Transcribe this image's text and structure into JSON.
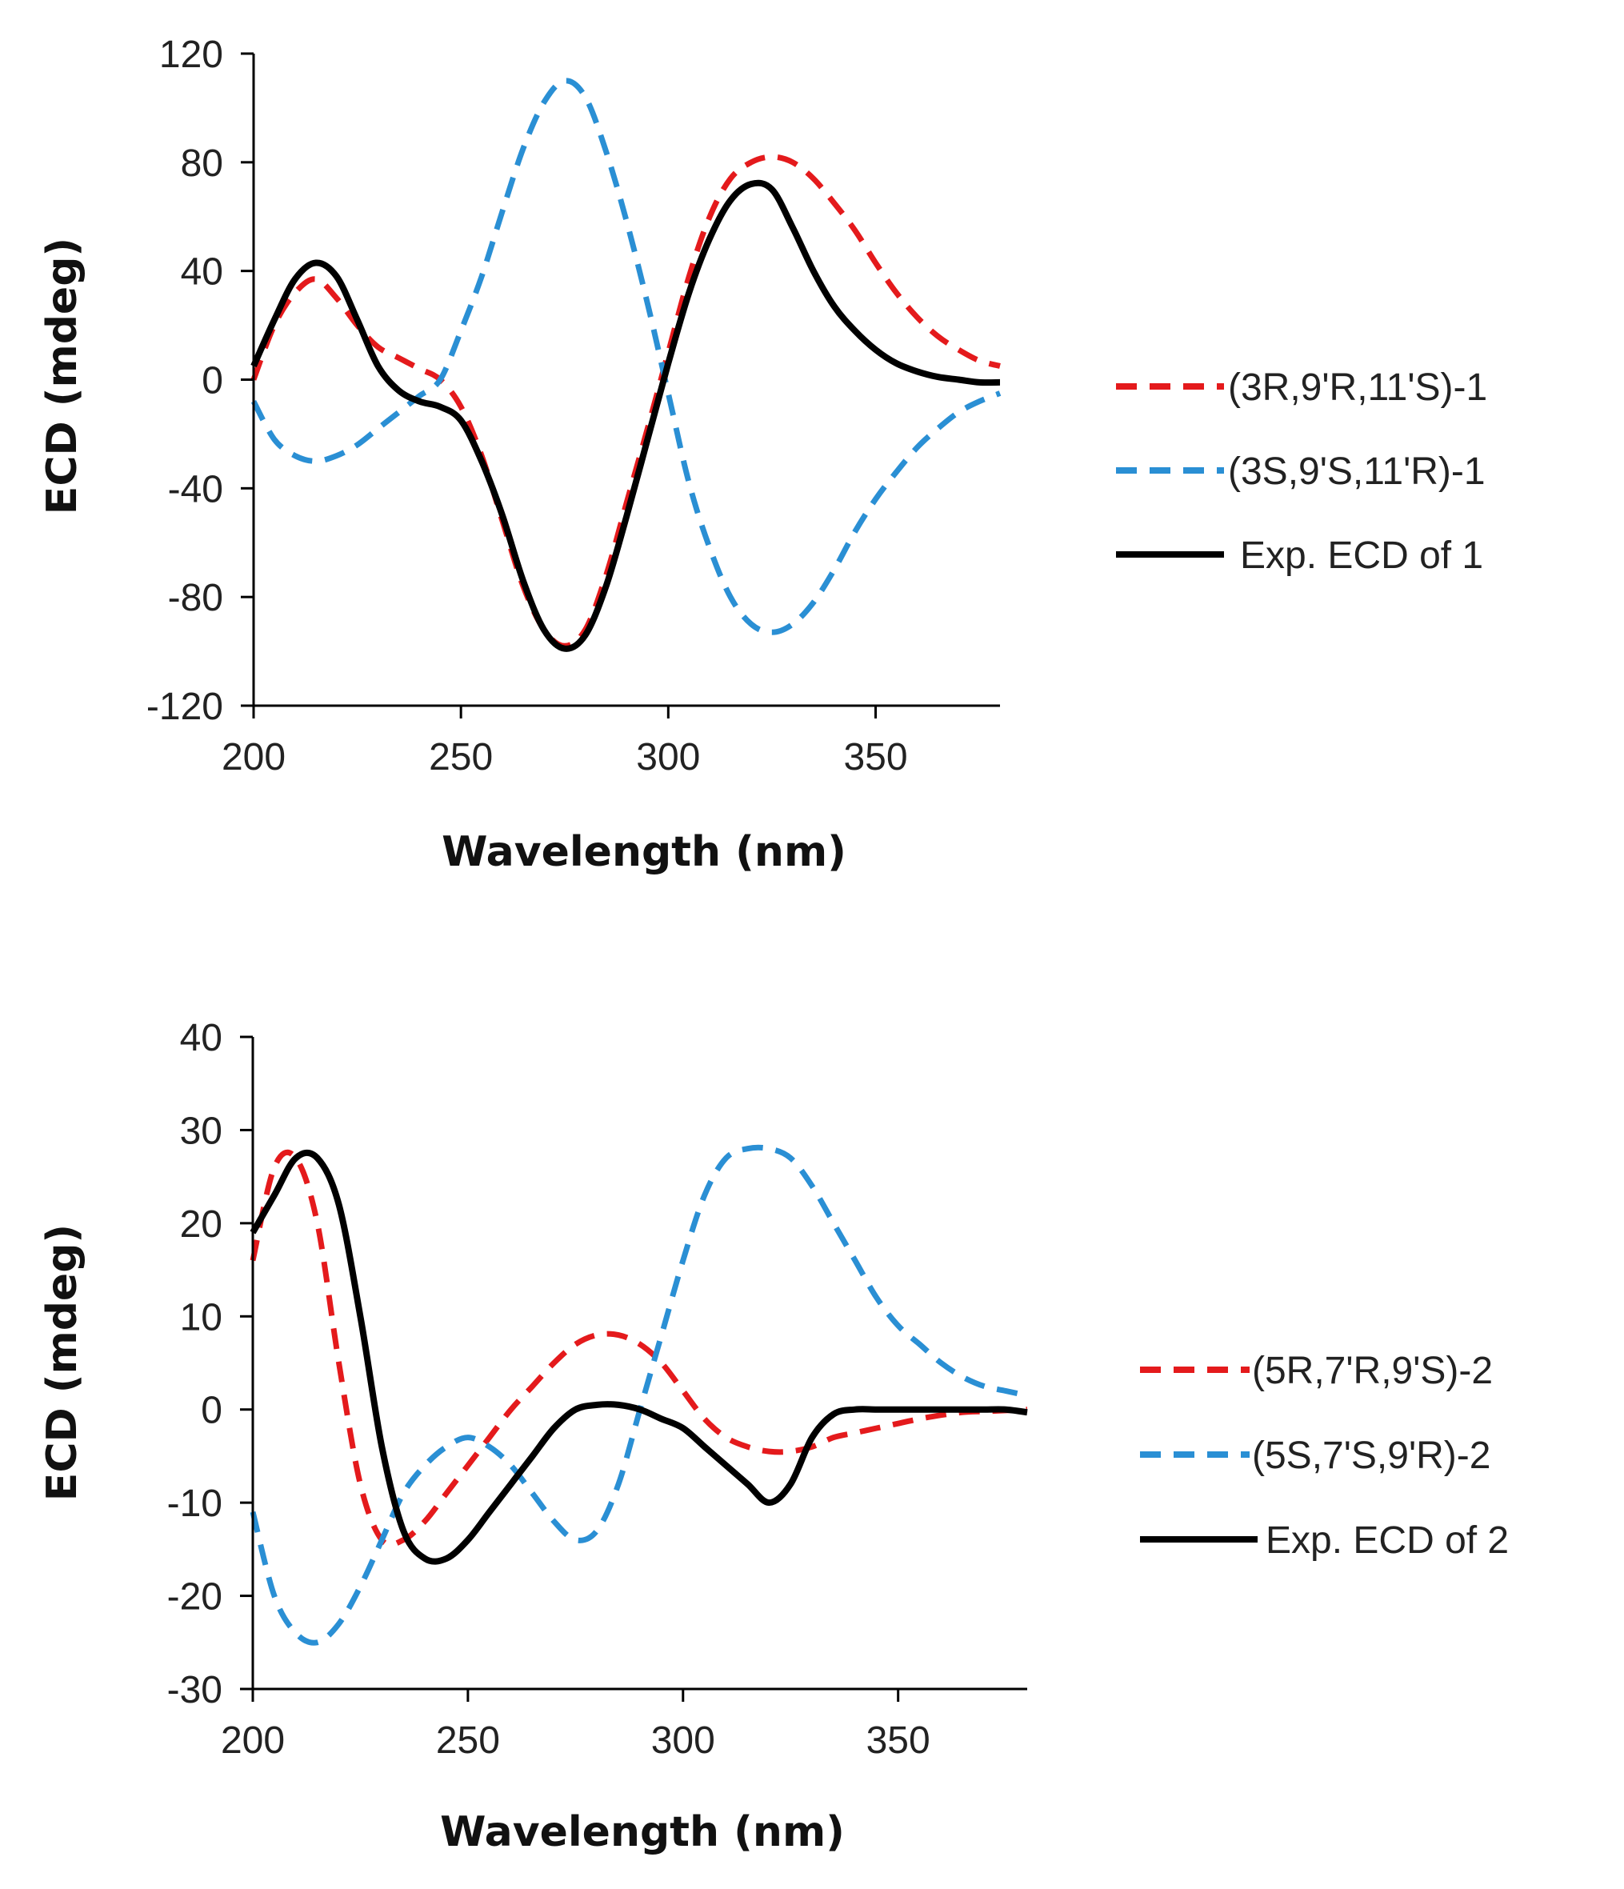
{
  "chart_data": [
    {
      "type": "line",
      "xlabel": "Wavelength (nm)",
      "ylabel": "ECD (mdeg)",
      "xlim": [
        200,
        380
      ],
      "ylim": [
        -120,
        120
      ],
      "xticks": [
        200,
        250,
        300,
        350
      ],
      "yticks": [
        120,
        80,
        40,
        0,
        -40,
        -80,
        -120
      ],
      "legend_position": "right",
      "series": [
        {
          "name": "(3R,9'R,11'S)-1",
          "color": "#e41a1c",
          "dash": "dashed",
          "x": [
            200,
            205,
            210,
            215,
            220,
            225,
            230,
            235,
            240,
            245,
            250,
            255,
            260,
            265,
            270,
            275,
            280,
            285,
            290,
            295,
            300,
            305,
            310,
            315,
            320,
            325,
            330,
            335,
            340,
            345,
            350,
            355,
            360,
            365,
            370,
            375,
            380
          ],
          "y": [
            0,
            20,
            32,
            37,
            30,
            20,
            12,
            8,
            4,
            0,
            -10,
            -28,
            -52,
            -76,
            -92,
            -98,
            -92,
            -72,
            -45,
            -18,
            10,
            38,
            60,
            74,
            80,
            82,
            80,
            74,
            65,
            55,
            43,
            32,
            23,
            16,
            11,
            7,
            5
          ]
        },
        {
          "name": "(3S,9'S,11'R)-1",
          "color": "#2a8fd4",
          "dash": "dashed",
          "x": [
            200,
            205,
            210,
            215,
            220,
            225,
            230,
            235,
            240,
            245,
            250,
            255,
            260,
            265,
            270,
            275,
            280,
            285,
            290,
            295,
            300,
            305,
            310,
            315,
            320,
            325,
            330,
            335,
            340,
            345,
            350,
            355,
            360,
            365,
            370,
            375,
            380
          ],
          "y": [
            -8,
            -22,
            -28,
            -30,
            -28,
            -24,
            -18,
            -12,
            -6,
            0,
            18,
            38,
            62,
            85,
            102,
            110,
            104,
            84,
            58,
            28,
            -5,
            -38,
            -62,
            -80,
            -90,
            -93,
            -90,
            -82,
            -70,
            -56,
            -44,
            -34,
            -25,
            -18,
            -12,
            -8,
            -5
          ]
        },
        {
          "name": "Exp. ECD of 1",
          "color": "#000000",
          "dash": "solid",
          "x": [
            200,
            205,
            210,
            215,
            220,
            225,
            230,
            235,
            240,
            245,
            250,
            255,
            260,
            265,
            270,
            275,
            280,
            285,
            290,
            295,
            300,
            305,
            310,
            315,
            320,
            325,
            330,
            335,
            340,
            345,
            350,
            355,
            360,
            365,
            370,
            375,
            380
          ],
          "y": [
            5,
            22,
            37,
            43,
            38,
            22,
            5,
            -4,
            -8,
            -10,
            -15,
            -30,
            -50,
            -74,
            -92,
            -99,
            -94,
            -76,
            -50,
            -22,
            6,
            32,
            52,
            66,
            72,
            70,
            56,
            40,
            27,
            18,
            11,
            6,
            3,
            1,
            0,
            -1,
            -1
          ]
        }
      ]
    },
    {
      "type": "line",
      "xlabel": "Wavelength (nm)",
      "ylabel": "ECD (mdeg)",
      "xlim": [
        200,
        380
      ],
      "ylim": [
        -30,
        40
      ],
      "xticks": [
        200,
        250,
        300,
        350
      ],
      "yticks": [
        40,
        30,
        20,
        10,
        0,
        -10,
        -20,
        -30
      ],
      "legend_position": "right",
      "series": [
        {
          "name": "(5R,7'R,9'S)-2",
          "color": "#e41a1c",
          "dash": "dashed",
          "x": [
            200,
            205,
            210,
            215,
            220,
            225,
            230,
            235,
            240,
            245,
            250,
            255,
            260,
            265,
            270,
            275,
            280,
            285,
            290,
            295,
            300,
            305,
            310,
            315,
            320,
            325,
            330,
            335,
            340,
            345,
            350,
            355,
            360,
            365,
            370,
            375,
            380
          ],
          "y": [
            16,
            26,
            27,
            20,
            5,
            -8,
            -14,
            -14,
            -12,
            -9,
            -6,
            -3,
            0,
            2.5,
            5,
            7,
            8,
            8,
            7,
            5,
            2,
            -1,
            -3,
            -4,
            -4.5,
            -4.5,
            -4,
            -3,
            -2.5,
            -2,
            -1.5,
            -1,
            -0.6,
            -0.3,
            -0.2,
            -0.1,
            0
          ]
        },
        {
          "name": "(5S,7'S,9'R)-2",
          "color": "#2a8fd4",
          "dash": "dashed",
          "x": [
            200,
            205,
            210,
            215,
            220,
            225,
            230,
            235,
            240,
            245,
            250,
            255,
            260,
            265,
            270,
            275,
            280,
            285,
            290,
            295,
            300,
            305,
            310,
            315,
            320,
            325,
            330,
            335,
            340,
            345,
            350,
            355,
            360,
            365,
            370,
            375,
            380
          ],
          "y": [
            -11,
            -20,
            -24,
            -25,
            -23,
            -19,
            -14,
            -9,
            -6,
            -4,
            -3,
            -4,
            -6,
            -9,
            -12,
            -14,
            -13,
            -8,
            0,
            8,
            16,
            23,
            27,
            28,
            28,
            27,
            24,
            20,
            16,
            12,
            9,
            7,
            5,
            3.5,
            2.5,
            2,
            1.5
          ]
        },
        {
          "name": "Exp. ECD of 2",
          "color": "#000000",
          "dash": "solid",
          "x": [
            200,
            205,
            210,
            215,
            220,
            225,
            230,
            235,
            240,
            245,
            250,
            255,
            260,
            265,
            270,
            275,
            280,
            285,
            290,
            295,
            300,
            305,
            310,
            315,
            320,
            325,
            330,
            335,
            340,
            345,
            350,
            355,
            360,
            365,
            370,
            375,
            380
          ],
          "y": [
            19,
            23,
            27,
            27,
            22,
            10,
            -4,
            -13,
            -16,
            -16,
            -14,
            -11,
            -8,
            -5,
            -2,
            0,
            0.5,
            0.5,
            0,
            -1,
            -2,
            -4,
            -6,
            -8,
            -10,
            -8,
            -3,
            -0.5,
            0,
            0,
            0,
            0,
            0,
            0,
            0,
            0,
            -0.3
          ]
        }
      ]
    }
  ]
}
